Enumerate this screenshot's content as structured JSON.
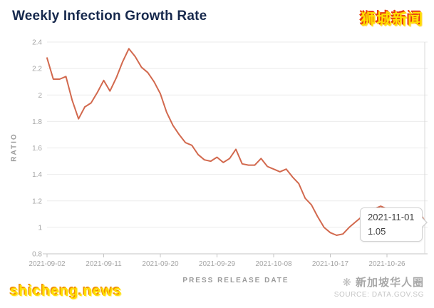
{
  "header": {
    "title": "Weekly Infection Growth Rate",
    "brand": "狮城新闻"
  },
  "chart_data": {
    "type": "line",
    "title": "Weekly Infection Growth Rate",
    "xlabel": "PRESS RELEASE DATE",
    "ylabel": "RATIO",
    "ylim": [
      0.8,
      2.4
    ],
    "yticks": [
      0.8,
      1,
      1.2,
      1.4,
      1.6,
      1.8,
      2,
      2.2,
      2.4
    ],
    "ytick_labels": [
      "0.8",
      "1",
      "1.2",
      "1.4",
      "1.6",
      "1.8",
      "2",
      "2.2",
      "2.4"
    ],
    "xtick_labels": [
      "2021-09-02",
      "2021-09-11",
      "2021-09-20",
      "2021-09-29",
      "2021-10-08",
      "2021-10-17",
      "2021-10-26"
    ],
    "grid": true,
    "legend": false,
    "line_color": "#d2694e",
    "grid_color": "#ebebeb",
    "axis_color": "#c4c4c4",
    "tick_text_color": "#a5a5a5",
    "x": [
      "2021-09-02",
      "2021-09-03",
      "2021-09-04",
      "2021-09-05",
      "2021-09-06",
      "2021-09-07",
      "2021-09-08",
      "2021-09-09",
      "2021-09-10",
      "2021-09-11",
      "2021-09-12",
      "2021-09-13",
      "2021-09-14",
      "2021-09-15",
      "2021-09-16",
      "2021-09-17",
      "2021-09-18",
      "2021-09-19",
      "2021-09-20",
      "2021-09-21",
      "2021-09-22",
      "2021-09-23",
      "2021-09-24",
      "2021-09-25",
      "2021-09-26",
      "2021-09-27",
      "2021-09-28",
      "2021-09-29",
      "2021-09-30",
      "2021-10-01",
      "2021-10-02",
      "2021-10-03",
      "2021-10-04",
      "2021-10-05",
      "2021-10-06",
      "2021-10-07",
      "2021-10-08",
      "2021-10-09",
      "2021-10-10",
      "2021-10-11",
      "2021-10-12",
      "2021-10-13",
      "2021-10-14",
      "2021-10-15",
      "2021-10-16",
      "2021-10-17",
      "2021-10-18",
      "2021-10-19",
      "2021-10-20",
      "2021-10-21",
      "2021-10-22",
      "2021-10-23",
      "2021-10-24",
      "2021-10-25",
      "2021-10-26",
      "2021-10-27",
      "2021-10-28",
      "2021-10-29",
      "2021-10-30",
      "2021-10-31",
      "2021-11-01"
    ],
    "y": [
      2.28,
      2.12,
      2.12,
      2.14,
      1.96,
      1.82,
      1.91,
      1.94,
      2.02,
      2.11,
      2.03,
      2.13,
      2.25,
      2.35,
      2.29,
      2.21,
      2.17,
      2.1,
      2.01,
      1.87,
      1.77,
      1.7,
      1.64,
      1.62,
      1.55,
      1.51,
      1.5,
      1.53,
      1.49,
      1.52,
      1.59,
      1.48,
      1.47,
      1.47,
      1.52,
      1.46,
      1.44,
      1.42,
      1.44,
      1.38,
      1.33,
      1.22,
      1.17,
      1.08,
      1.0,
      0.96,
      0.94,
      0.95,
      1.0,
      1.04,
      1.08,
      1.12,
      1.14,
      1.16,
      1.14,
      1.13,
      1.12,
      1.13,
      1.14,
      1.12,
      1.05
    ],
    "hover_point": {
      "x": "2021-11-01",
      "y": 1.05
    }
  },
  "tooltip": {
    "date": "2021-11-01",
    "value": "1.05"
  },
  "watermarks": {
    "left": "shicheng.news",
    "right_brand": "新加坡华人圈",
    "logo_icon": "❋",
    "source": "SOURCE: DATA.GOV.SG"
  }
}
